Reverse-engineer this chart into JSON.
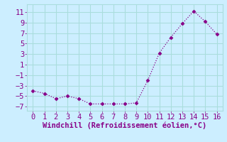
{
  "x": [
    0,
    1,
    2,
    3,
    4,
    5,
    6,
    7,
    8,
    9,
    10,
    11,
    12,
    13,
    14,
    15,
    16
  ],
  "y": [
    -4.0,
    -4.5,
    -5.5,
    -5.0,
    -5.5,
    -6.5,
    -6.5,
    -6.5,
    -6.5,
    -6.3,
    -2.0,
    3.2,
    6.2,
    8.8,
    11.2,
    9.2,
    6.8
  ],
  "line_color": "#880088",
  "marker": "D",
  "marker_size": 2.5,
  "bg_color": "#cceeff",
  "grid_color": "#aadddd",
  "xlabel": "Windchill (Refroidissement éolien,°C)",
  "xlabel_color": "#880088",
  "tick_color": "#880088",
  "xlim": [
    -0.5,
    16.5
  ],
  "ylim": [
    -7.8,
    12.5
  ],
  "yticks": [
    -7,
    -5,
    -3,
    -1,
    1,
    3,
    5,
    7,
    9,
    11
  ],
  "xticks": [
    0,
    1,
    2,
    3,
    4,
    5,
    6,
    7,
    8,
    9,
    10,
    11,
    12,
    13,
    14,
    15,
    16
  ],
  "tick_fontsize": 7.5,
  "xlabel_fontsize": 7.5
}
